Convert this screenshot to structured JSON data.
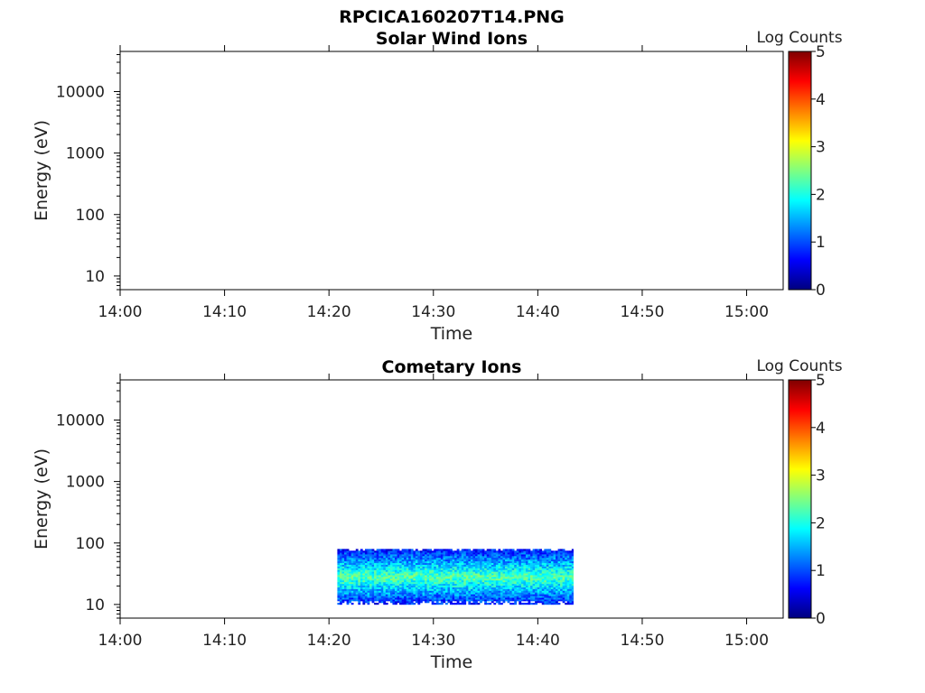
{
  "figure": {
    "title": "RPCICA160207T14.PNG"
  },
  "chart_data": [
    {
      "type": "heatmap",
      "title": "Solar Wind Ions",
      "xlabel": "Time",
      "ylabel": "Energy (eV)",
      "x_ticks": [
        "14:00",
        "14:10",
        "14:20",
        "14:30",
        "14:40",
        "14:50",
        "15:00"
      ],
      "xlim_minutes": [
        0,
        63.5
      ],
      "y_scale": "log",
      "y_ticks": [
        10,
        100,
        1000,
        10000
      ],
      "y_tick_labels": [
        "10",
        "100",
        "1000",
        "10000"
      ],
      "ylim": [
        6,
        45000
      ],
      "colorbar": {
        "label": "Log Counts",
        "range": [
          0,
          5
        ],
        "ticks": [
          "0",
          "1",
          "2",
          "3",
          "4",
          "5"
        ],
        "colormap": "jet"
      },
      "data": []
    },
    {
      "type": "heatmap",
      "title": "Cometary Ions",
      "xlabel": "Time",
      "ylabel": "Energy (eV)",
      "x_ticks": [
        "14:00",
        "14:10",
        "14:20",
        "14:30",
        "14:40",
        "14:50",
        "15:00"
      ],
      "xlim_minutes": [
        0,
        63.5
      ],
      "y_scale": "log",
      "y_ticks": [
        10,
        100,
        1000,
        10000
      ],
      "y_tick_labels": [
        "10",
        "100",
        "1000",
        "10000"
      ],
      "ylim": [
        6,
        45000
      ],
      "colorbar": {
        "label": "Log Counts",
        "range": [
          0,
          5
        ],
        "ticks": [
          "0",
          "1",
          "2",
          "3",
          "4",
          "5"
        ],
        "colormap": "jet"
      },
      "data": {
        "time_start_minutes": 20.8,
        "time_end_minutes": 43.4,
        "energy_min_ev": 10,
        "energy_max_ev": 80,
        "peak_energy_ev": 28,
        "peak_log_counts": 2.3,
        "edge_log_counts": 0.6
      }
    }
  ]
}
